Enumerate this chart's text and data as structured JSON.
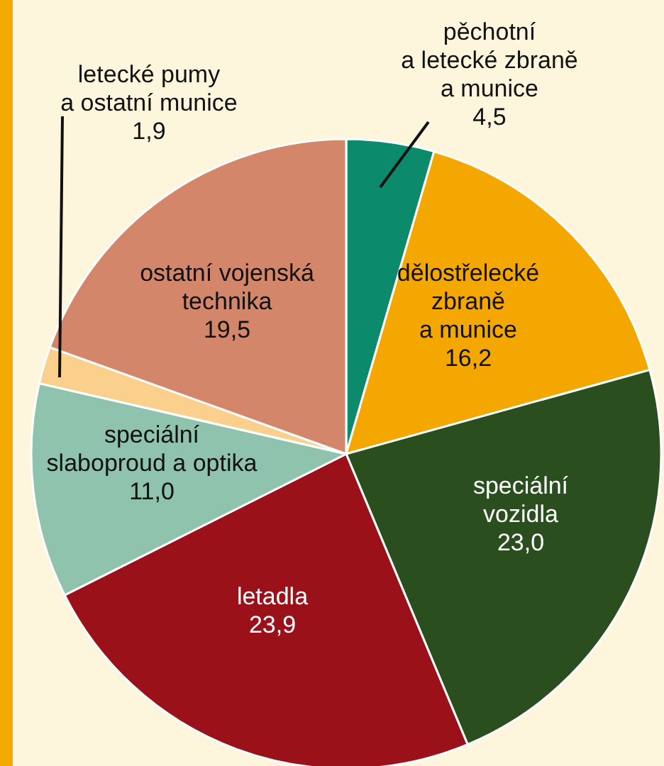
{
  "chart_data": {
    "type": "pie",
    "categories": [
      "pěchotní a letecké zbraně a munice",
      "dělostřelecké zbraně a munice",
      "speciální vozidla",
      "letadla",
      "speciální slaboproud a optika",
      "letecké pumy a ostatní munice",
      "ostatní vojenská technika"
    ],
    "values": [
      4.5,
      16.2,
      23.0,
      23.9,
      11.0,
      1.9,
      19.5
    ],
    "colors": [
      "#0b8a6c",
      "#f4a700",
      "#2a4e1e",
      "#9a1119",
      "#8fc3ae",
      "#fbd08c",
      "#d3866a"
    ],
    "value_labels": [
      "4,5",
      "16,2",
      "23,0",
      "23,9",
      "11,0",
      "1,9",
      "19,5"
    ]
  }
}
